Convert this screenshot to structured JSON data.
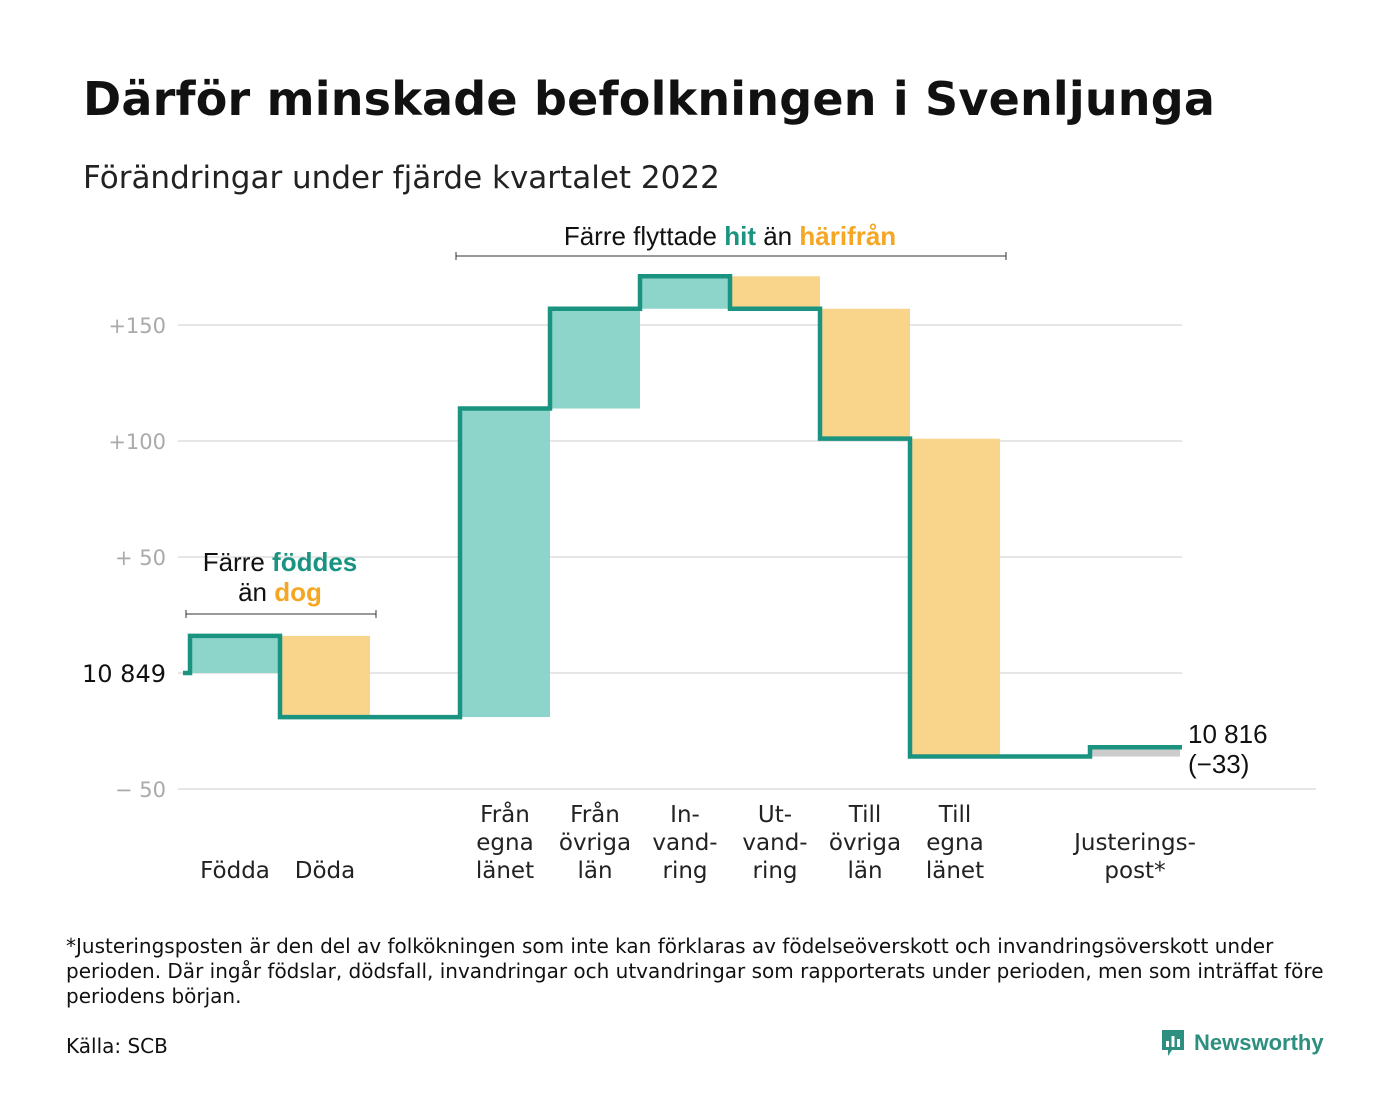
{
  "title": "Därför minskade befolkningen i Svenljunga",
  "subtitle": "Förändringar under fjärde kvartalet 2022",
  "footnote": "*Justeringsposten är den del av folkökningen som inte kan förklaras av födelseöverskott och invandringsöverskott under perioden. Där ingår födslar, dödsfall, invandringar och utvandringar som rapporterats under perioden, men som inträffat före periodens början.",
  "source": "Källa: SCB",
  "brand": "Newsworthy",
  "colors": {
    "increase": "#8dd5cb",
    "decrease": "#f9d58c",
    "adjustment": "#cccccc",
    "line": "#1a9480",
    "grid": "#dddddd"
  },
  "annotations": {
    "births": {
      "part1": "Färre ",
      "hl1": "föddes",
      "part2": "än ",
      "hl2": "dog"
    },
    "moves": {
      "part1": "Färre flyttade ",
      "hl1": "hit",
      "part2": " än ",
      "hl2": "härifrån"
    }
  },
  "chart_data": {
    "type": "waterfall",
    "start_value": 10849,
    "start_label": "10 849",
    "end_value": 10816,
    "end_label": "10 816",
    "end_change_label": "(−33)",
    "y_axis": {
      "ylim": [
        -50,
        170
      ],
      "ticks": [
        150,
        100,
        50,
        -50
      ],
      "tick_labels": [
        "+150",
        "+100",
        "+ 50",
        "− 50"
      ]
    },
    "steps": [
      {
        "label": [
          "Födda"
        ],
        "change": 16,
        "type": "increase",
        "gap_after": false
      },
      {
        "label": [
          "Döda"
        ],
        "change": -35,
        "type": "decrease",
        "gap_after": true
      },
      {
        "label": [
          "Från",
          "egna",
          "länet"
        ],
        "change": 133,
        "type": "increase",
        "gap_after": false
      },
      {
        "label": [
          "Från",
          "övriga",
          "län"
        ],
        "change": 43,
        "type": "increase",
        "gap_after": false
      },
      {
        "label": [
          "In-",
          "vand-",
          "ring"
        ],
        "change": 14,
        "type": "increase",
        "gap_after": false
      },
      {
        "label": [
          "Ut-",
          "vand-",
          "ring"
        ],
        "change": -14,
        "type": "decrease",
        "gap_after": false
      },
      {
        "label": [
          "Till",
          "övriga",
          "län"
        ],
        "change": -56,
        "type": "decrease",
        "gap_after": false
      },
      {
        "label": [
          "Till",
          "egna",
          "länet"
        ],
        "change": -137,
        "type": "decrease",
        "gap_after": true
      },
      {
        "label": [
          "Justerings-",
          "post*"
        ],
        "change": 4,
        "type": "adjustment",
        "gap_after": false
      }
    ]
  }
}
